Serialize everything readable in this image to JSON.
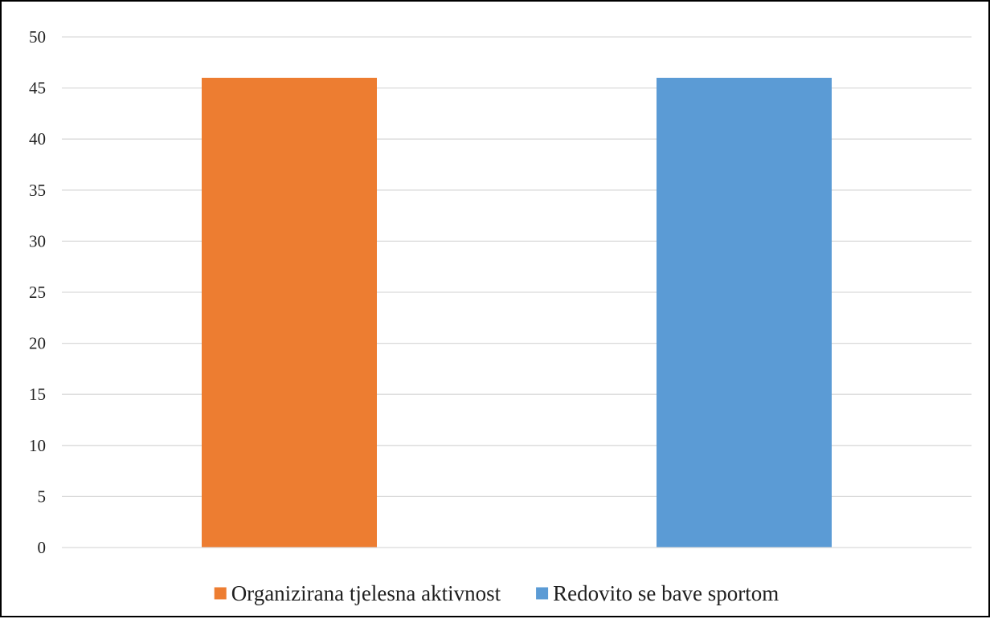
{
  "chart_data": {
    "type": "bar",
    "title": "",
    "xlabel": "",
    "ylabel": "",
    "categories": [
      "Organizirana tjelesna aktivnost",
      "Redovito se bave sportom"
    ],
    "series": [
      {
        "name": "Organizirana tjelesna aktivnost",
        "values": [
          46,
          null
        ],
        "color": "#ED7D31"
      },
      {
        "name": "Redovito se bave sportom",
        "values": [
          null,
          46
        ],
        "color": "#5B9BD5"
      }
    ],
    "ylim": [
      0,
      50
    ],
    "yticks": [
      0,
      5,
      10,
      15,
      20,
      25,
      30,
      35,
      40,
      45,
      50
    ],
    "grid": true,
    "legend_position": "bottom"
  }
}
